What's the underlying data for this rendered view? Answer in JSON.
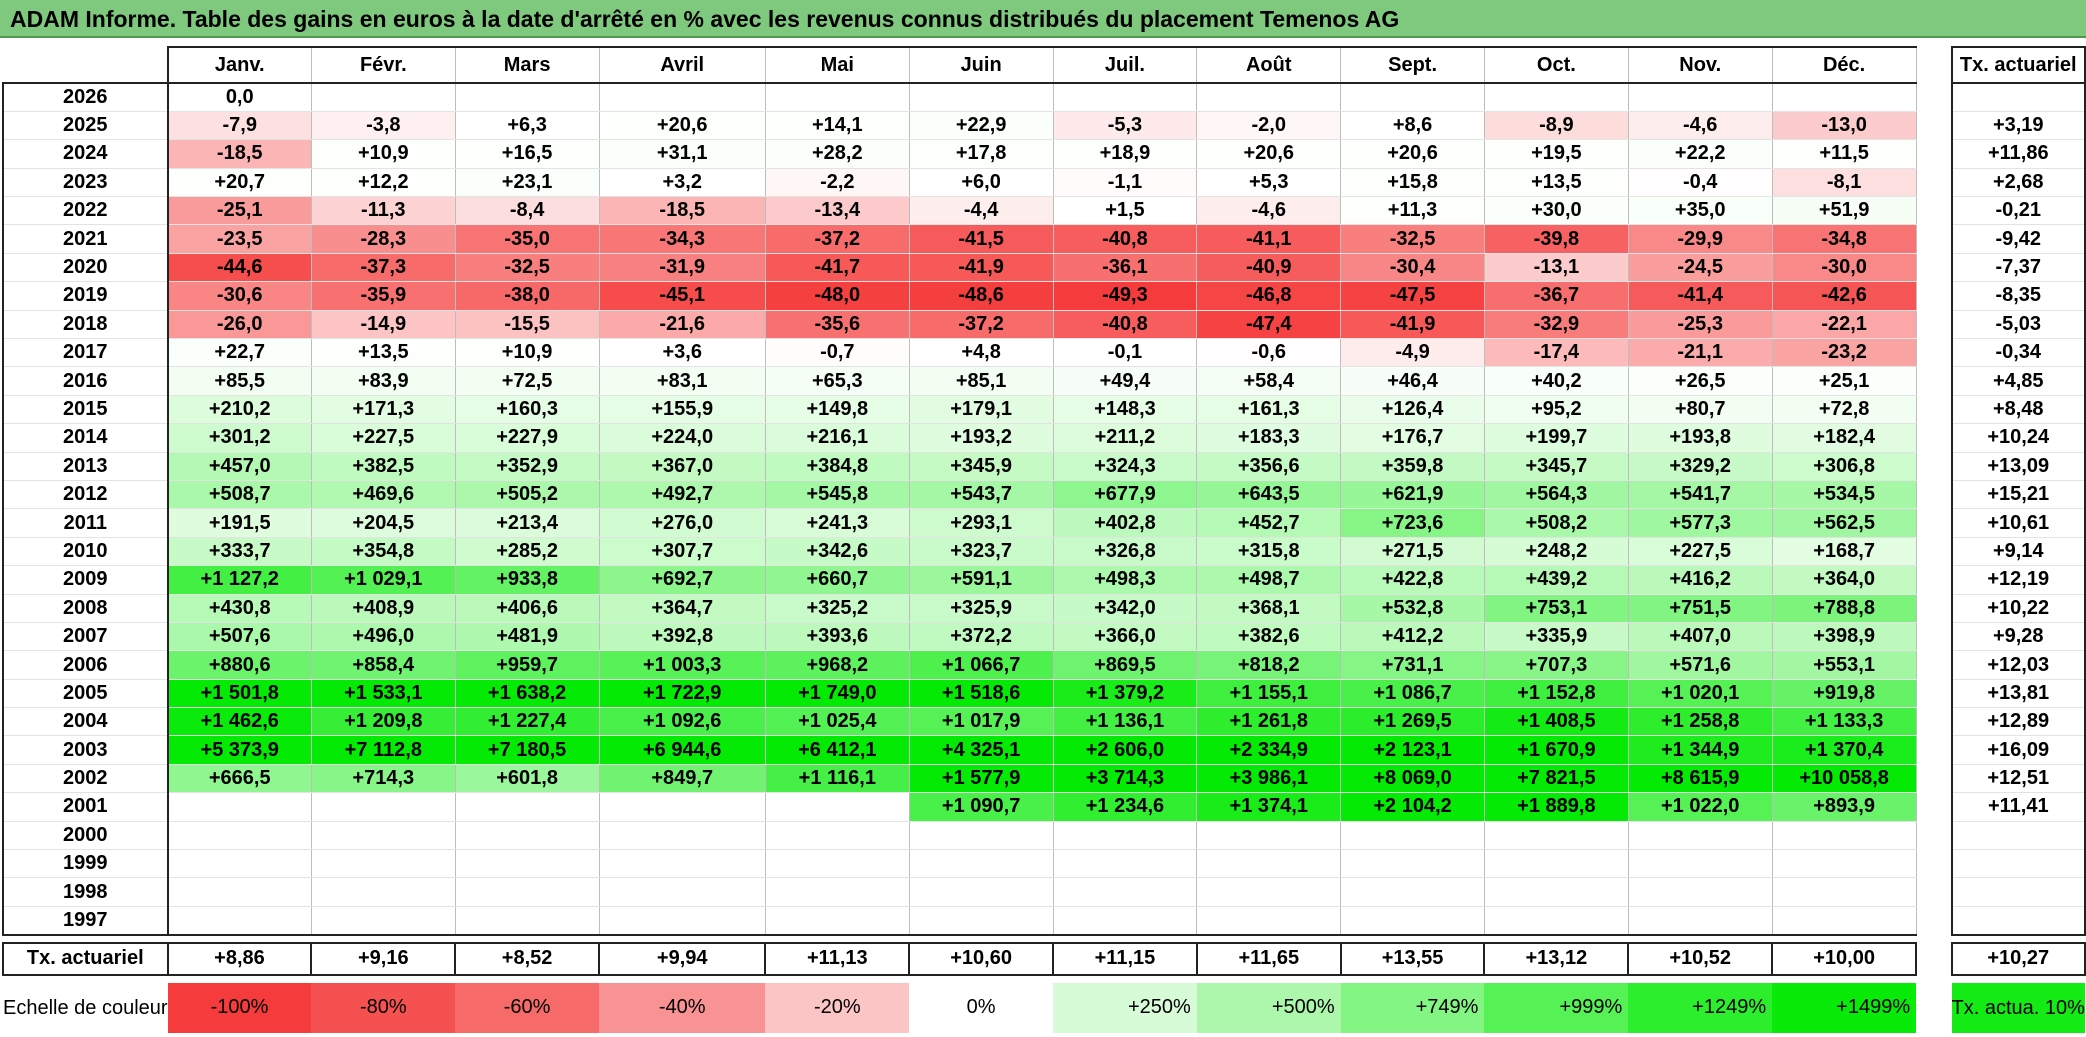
{
  "title": "ADAM Informe. Table des gains en euros à la date d'arrêté en % avec les revenus connus distribués du placement Temenos AG",
  "months": [
    "Janv.",
    "Févr.",
    "Mars",
    "Avril",
    "Mai",
    "Juin",
    "Juil.",
    "Août",
    "Sept.",
    "Oct.",
    "Nov.",
    "Déc."
  ],
  "tx_header": "Tx. actuariel",
  "rows": [
    {
      "year": "2026",
      "values": [
        "0,0",
        "",
        "",
        "",
        "",
        "",
        "",
        "",
        "",
        "",
        "",
        ""
      ],
      "tx": ""
    },
    {
      "year": "2025",
      "values": [
        "-7,9",
        "-3,8",
        "+6,3",
        "+20,6",
        "+14,1",
        "+22,9",
        "-5,3",
        "-2,0",
        "+8,6",
        "-8,9",
        "-4,6",
        "-13,0"
      ],
      "tx": "+3,19"
    },
    {
      "year": "2024",
      "values": [
        "-18,5",
        "+10,9",
        "+16,5",
        "+31,1",
        "+28,2",
        "+17,8",
        "+18,9",
        "+20,6",
        "+20,6",
        "+19,5",
        "+22,2",
        "+11,5"
      ],
      "tx": "+11,86"
    },
    {
      "year": "2023",
      "values": [
        "+20,7",
        "+12,2",
        "+23,1",
        "+3,2",
        "-2,2",
        "+6,0",
        "-1,1",
        "+5,3",
        "+15,8",
        "+13,5",
        "-0,4",
        "-8,1"
      ],
      "tx": "+2,68"
    },
    {
      "year": "2022",
      "values": [
        "-25,1",
        "-11,3",
        "-8,4",
        "-18,5",
        "-13,4",
        "-4,4",
        "+1,5",
        "-4,6",
        "+11,3",
        "+30,0",
        "+35,0",
        "+51,9"
      ],
      "tx": "-0,21"
    },
    {
      "year": "2021",
      "values": [
        "-23,5",
        "-28,3",
        "-35,0",
        "-34,3",
        "-37,2",
        "-41,5",
        "-40,8",
        "-41,1",
        "-32,5",
        "-39,8",
        "-29,9",
        "-34,8"
      ],
      "tx": "-9,42"
    },
    {
      "year": "2020",
      "values": [
        "-44,6",
        "-37,3",
        "-32,5",
        "-31,9",
        "-41,7",
        "-41,9",
        "-36,1",
        "-40,9",
        "-30,4",
        "-13,1",
        "-24,5",
        "-30,0"
      ],
      "tx": "-7,37"
    },
    {
      "year": "2019",
      "values": [
        "-30,6",
        "-35,9",
        "-38,0",
        "-45,1",
        "-48,0",
        "-48,6",
        "-49,3",
        "-46,8",
        "-47,5",
        "-36,7",
        "-41,4",
        "-42,6"
      ],
      "tx": "-8,35"
    },
    {
      "year": "2018",
      "values": [
        "-26,0",
        "-14,9",
        "-15,5",
        "-21,6",
        "-35,6",
        "-37,2",
        "-40,8",
        "-47,4",
        "-41,9",
        "-32,9",
        "-25,3",
        "-22,1"
      ],
      "tx": "-5,03"
    },
    {
      "year": "2017",
      "values": [
        "+22,7",
        "+13,5",
        "+10,9",
        "+3,6",
        "-0,7",
        "+4,8",
        "-0,1",
        "-0,6",
        "-4,9",
        "-17,4",
        "-21,1",
        "-23,2"
      ],
      "tx": "-0,34"
    },
    {
      "year": "2016",
      "values": [
        "+85,5",
        "+83,9",
        "+72,5",
        "+83,1",
        "+65,3",
        "+85,1",
        "+49,4",
        "+58,4",
        "+46,4",
        "+40,2",
        "+26,5",
        "+25,1"
      ],
      "tx": "+4,85"
    },
    {
      "year": "2015",
      "values": [
        "+210,2",
        "+171,3",
        "+160,3",
        "+155,9",
        "+149,8",
        "+179,1",
        "+148,3",
        "+161,3",
        "+126,4",
        "+95,2",
        "+80,7",
        "+72,8"
      ],
      "tx": "+8,48"
    },
    {
      "year": "2014",
      "values": [
        "+301,2",
        "+227,5",
        "+227,9",
        "+224,0",
        "+216,1",
        "+193,2",
        "+211,2",
        "+183,3",
        "+176,7",
        "+199,7",
        "+193,8",
        "+182,4"
      ],
      "tx": "+10,24"
    },
    {
      "year": "2013",
      "values": [
        "+457,0",
        "+382,5",
        "+352,9",
        "+367,0",
        "+384,8",
        "+345,9",
        "+324,3",
        "+356,6",
        "+359,8",
        "+345,7",
        "+329,2",
        "+306,8"
      ],
      "tx": "+13,09"
    },
    {
      "year": "2012",
      "values": [
        "+508,7",
        "+469,6",
        "+505,2",
        "+492,7",
        "+545,8",
        "+543,7",
        "+677,9",
        "+643,5",
        "+621,9",
        "+564,3",
        "+541,7",
        "+534,5"
      ],
      "tx": "+15,21"
    },
    {
      "year": "2011",
      "values": [
        "+191,5",
        "+204,5",
        "+213,4",
        "+276,0",
        "+241,3",
        "+293,1",
        "+402,8",
        "+452,7",
        "+723,6",
        "+508,2",
        "+577,3",
        "+562,5"
      ],
      "tx": "+10,61"
    },
    {
      "year": "2010",
      "values": [
        "+333,7",
        "+354,8",
        "+285,2",
        "+307,7",
        "+342,6",
        "+323,7",
        "+326,8",
        "+315,8",
        "+271,5",
        "+248,2",
        "+227,5",
        "+168,7"
      ],
      "tx": "+9,14"
    },
    {
      "year": "2009",
      "values": [
        "+1 127,2",
        "+1 029,1",
        "+933,8",
        "+692,7",
        "+660,7",
        "+591,1",
        "+498,3",
        "+498,7",
        "+422,8",
        "+439,2",
        "+416,2",
        "+364,0"
      ],
      "tx": "+12,19"
    },
    {
      "year": "2008",
      "values": [
        "+430,8",
        "+408,9",
        "+406,6",
        "+364,7",
        "+325,2",
        "+325,9",
        "+342,0",
        "+368,1",
        "+532,8",
        "+753,1",
        "+751,5",
        "+788,8"
      ],
      "tx": "+10,22"
    },
    {
      "year": "2007",
      "values": [
        "+507,6",
        "+496,0",
        "+481,9",
        "+392,8",
        "+393,6",
        "+372,2",
        "+366,0",
        "+382,6",
        "+412,2",
        "+335,9",
        "+407,0",
        "+398,9"
      ],
      "tx": "+9,28"
    },
    {
      "year": "2006",
      "values": [
        "+880,6",
        "+858,4",
        "+959,7",
        "+1 003,3",
        "+968,2",
        "+1 066,7",
        "+869,5",
        "+818,2",
        "+731,1",
        "+707,3",
        "+571,6",
        "+553,1"
      ],
      "tx": "+12,03"
    },
    {
      "year": "2005",
      "values": [
        "+1 501,8",
        "+1 533,1",
        "+1 638,2",
        "+1 722,9",
        "+1 749,0",
        "+1 518,6",
        "+1 379,2",
        "+1 155,1",
        "+1 086,7",
        "+1 152,8",
        "+1 020,1",
        "+919,8"
      ],
      "tx": "+13,81"
    },
    {
      "year": "2004",
      "values": [
        "+1 462,6",
        "+1 209,8",
        "+1 227,4",
        "+1 092,6",
        "+1 025,4",
        "+1 017,9",
        "+1 136,1",
        "+1 261,8",
        "+1 269,5",
        "+1 408,5",
        "+1 258,8",
        "+1 133,3"
      ],
      "tx": "+12,89"
    },
    {
      "year": "2003",
      "values": [
        "+5 373,9",
        "+7 112,8",
        "+7 180,5",
        "+6 944,6",
        "+6 412,1",
        "+4 325,1",
        "+2 606,0",
        "+2 334,9",
        "+2 123,1",
        "+1 670,9",
        "+1 344,9",
        "+1 370,4"
      ],
      "tx": "+16,09"
    },
    {
      "year": "2002",
      "values": [
        "+666,5",
        "+714,3",
        "+601,8",
        "+849,7",
        "+1 116,1",
        "+1 577,9",
        "+3 714,3",
        "+3 986,1",
        "+8 069,0",
        "+7 821,5",
        "+8 615,9",
        "+10 058,8"
      ],
      "tx": "+12,51"
    },
    {
      "year": "2001",
      "values": [
        "",
        "",
        "",
        "",
        "",
        "+1 090,7",
        "+1 234,6",
        "+1 374,1",
        "+2 104,2",
        "+1 889,8",
        "+1 022,0",
        "+893,9"
      ],
      "tx": "+11,41"
    },
    {
      "year": "2000",
      "values": [
        "",
        "",
        "",
        "",
        "",
        "",
        "",
        "",
        "",
        "",
        "",
        ""
      ],
      "tx": ""
    },
    {
      "year": "1999",
      "values": [
        "",
        "",
        "",
        "",
        "",
        "",
        "",
        "",
        "",
        "",
        "",
        ""
      ],
      "tx": ""
    },
    {
      "year": "1998",
      "values": [
        "",
        "",
        "",
        "",
        "",
        "",
        "",
        "",
        "",
        "",
        "",
        ""
      ],
      "tx": ""
    },
    {
      "year": "1997",
      "values": [
        "",
        "",
        "",
        "",
        "",
        "",
        "",
        "",
        "",
        "",
        "",
        ""
      ],
      "tx": ""
    }
  ],
  "totals": {
    "label": "Tx. actuariel",
    "values": [
      "+8,86",
      "+9,16",
      "+8,52",
      "+9,94",
      "+11,13",
      "+10,60",
      "+11,15",
      "+11,65",
      "+13,55",
      "+13,12",
      "+10,52",
      "+10,00"
    ],
    "tx": "+10,27"
  },
  "scale": {
    "label": "Echelle de couleur",
    "items": [
      {
        "text": "-100%",
        "color": "#f53b3b",
        "align": "left"
      },
      {
        "text": "-80%",
        "color": "#f55151",
        "align": "left"
      },
      {
        "text": "-60%",
        "color": "#f76a6a",
        "align": "left"
      },
      {
        "text": "-40%",
        "color": "#f99393",
        "align": "left"
      },
      {
        "text": "-20%",
        "color": "#fcc5c5",
        "align": "left"
      },
      {
        "text": "0%",
        "color": "#ffffff",
        "align": "center"
      },
      {
        "text": "+250%",
        "color": "#d7fbd7",
        "align": "right"
      },
      {
        "text": "+500%",
        "color": "#adf7ad",
        "align": "right"
      },
      {
        "text": "+749%",
        "color": "#82f582",
        "align": "right"
      },
      {
        "text": "+999%",
        "color": "#55f155",
        "align": "right"
      },
      {
        "text": "+1249%",
        "color": "#2cee2c",
        "align": "right"
      },
      {
        "text": "+1499%",
        "color": "#08ea08",
        "align": "right"
      }
    ],
    "tx_note": "Tx. actua. 10%",
    "tx_note_color": "#14ea14"
  }
}
